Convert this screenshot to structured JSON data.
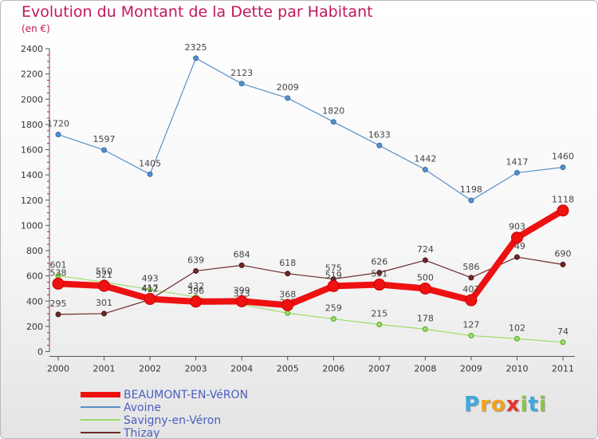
{
  "chart_data": {
    "type": "line",
    "title": "Evolution du Montant de la Dette par Habitant",
    "subtitle": "(en €)",
    "x": [
      "2000",
      "2001",
      "2002",
      "2003",
      "2004",
      "2005",
      "2006",
      "2007",
      "2008",
      "2009",
      "2010",
      "2011"
    ],
    "y_ticks": [
      "0",
      "200",
      "400",
      "600",
      "800",
      "1000",
      "1200",
      "1400",
      "1600",
      "1800",
      "2000",
      "2200",
      "2400"
    ],
    "ylim": [
      0,
      2400
    ],
    "grid": false,
    "legend_position": "bottom-left",
    "series": [
      {
        "name": "Avoine",
        "color": "#5b8fc7",
        "values": [
          1720,
          1597,
          1405,
          2325,
          2123,
          2009,
          1820,
          1633,
          1442,
          1198,
          1417,
          1460
        ],
        "labels": [
          "1720",
          "1597",
          "1405",
          "2325",
          "2123",
          "2009",
          "1820",
          "1633",
          "1442",
          "1198",
          "1417",
          "1460"
        ]
      },
      {
        "name": "Savigny-en-Véron",
        "color": "#99dd66",
        "values": [
          601,
          550,
          493,
          432,
          373,
          305,
          259,
          215,
          178,
          127,
          102,
          74
        ],
        "labels": [
          "601",
          "550",
          "493",
          "432",
          "373",
          "305",
          "259",
          "215",
          "178",
          "127",
          "102",
          "74"
        ]
      },
      {
        "name": "Thizay",
        "color": "#6b2a2a",
        "values": [
          295,
          301,
          412,
          639,
          684,
          618,
          575,
          626,
          724,
          586,
          749,
          690
        ],
        "labels": [
          "295",
          "301",
          "412",
          "639",
          "684",
          "618",
          "575",
          "626",
          "724",
          "586",
          "749",
          "690"
        ]
      },
      {
        "name": "BEAUMONT-EN-VéRON",
        "color": "#ee1111",
        "values": [
          538,
          521,
          417,
          396,
          399,
          368,
          519,
          531,
          500,
          407,
          903,
          1118
        ],
        "labels": [
          "538",
          "521",
          "417",
          "396",
          "399",
          "368",
          "519",
          "531",
          "500",
          "407",
          "903",
          "1118"
        ]
      }
    ]
  },
  "legend": {
    "items": [
      "BEAUMONT-EN-VéRON",
      "Avoine",
      "Savigny-en-Véron",
      "Thizay"
    ]
  },
  "logo": {
    "text": "Proxiti",
    "letters": [
      "P",
      "r",
      "o",
      "x",
      "i",
      "t",
      "i"
    ],
    "letter_colors": [
      "#3fa9dd",
      "#f4a11d",
      "#f4a11d",
      "#e5332a",
      "#8bc34a",
      "#3fa9dd",
      "#8bc34a"
    ]
  }
}
